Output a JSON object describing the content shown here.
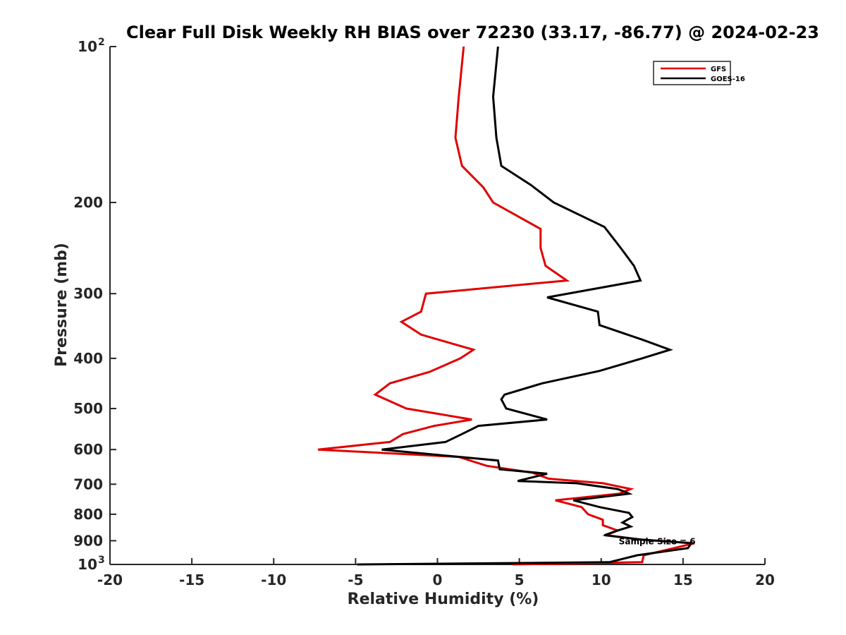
{
  "chart_data": {
    "type": "line",
    "title": "Clear Full Disk Weekly RH BIAS over 72230 (33.17, -86.77) @ 2024-02-23",
    "xlabel": "Relative Humidity (%)",
    "ylabel": "Pressure (mb)",
    "xlim": [
      -20,
      20
    ],
    "ylim": [
      100,
      1000
    ],
    "yscale": "log",
    "y_reversed": true,
    "x_ticks": [
      -20,
      -15,
      -10,
      -5,
      0,
      5,
      10,
      15,
      20
    ],
    "x_tick_labels": [
      "-20",
      "-15",
      "-10",
      "-5",
      "0",
      "5",
      "10",
      "15",
      "20"
    ],
    "y_ticks": [
      {
        "value": 100,
        "label": "10",
        "sup": "2"
      },
      {
        "value": 200,
        "label": "200",
        "sup": ""
      },
      {
        "value": 300,
        "label": "300",
        "sup": ""
      },
      {
        "value": 400,
        "label": "400",
        "sup": ""
      },
      {
        "value": 500,
        "label": "500",
        "sup": ""
      },
      {
        "value": 600,
        "label": "600",
        "sup": ""
      },
      {
        "value": 700,
        "label": "700",
        "sup": ""
      },
      {
        "value": 800,
        "label": "800",
        "sup": ""
      },
      {
        "value": 900,
        "label": "900",
        "sup": ""
      },
      {
        "value": 1000,
        "label": "10",
        "sup": "3"
      }
    ],
    "legend_position": "top-right",
    "annotation": "Sample Size = 6",
    "annotation_at": {
      "x": 10.3,
      "y": 900
    },
    "series": [
      {
        "name": "GFS",
        "color": "#e00000",
        "points": [
          [
            1.6,
            100
          ],
          [
            1.3,
            125
          ],
          [
            1.1,
            150
          ],
          [
            1.5,
            170
          ],
          [
            2.8,
            187
          ],
          [
            3.4,
            200
          ],
          [
            6.3,
            225
          ],
          [
            6.3,
            245
          ],
          [
            6.6,
            265
          ],
          [
            7.9,
            283
          ],
          [
            -0.7,
            300
          ],
          [
            -1.0,
            325
          ],
          [
            -2.2,
            340
          ],
          [
            -1.0,
            360
          ],
          [
            2.2,
            385
          ],
          [
            1.4,
            400
          ],
          [
            -0.5,
            425
          ],
          [
            -2.9,
            447
          ],
          [
            -3.8,
            470
          ],
          [
            -1.9,
            500
          ],
          [
            2.1,
            525
          ],
          [
            -0.2,
            540
          ],
          [
            -2.1,
            560
          ],
          [
            -2.9,
            580
          ],
          [
            -7.3,
            600
          ],
          [
            1.3,
            620
          ],
          [
            3.0,
            645
          ],
          [
            5.8,
            665
          ],
          [
            6.8,
            683
          ],
          [
            10.1,
            697
          ],
          [
            11.8,
            715
          ],
          [
            11.1,
            730
          ],
          [
            7.2,
            752
          ],
          [
            8.8,
            775
          ],
          [
            9.2,
            800
          ],
          [
            10.1,
            820
          ],
          [
            10.1,
            840
          ],
          [
            11.0,
            860
          ],
          [
            10.3,
            878
          ],
          [
            12.3,
            895
          ],
          [
            15.7,
            910
          ],
          [
            12.6,
            960
          ],
          [
            12.5,
            990
          ],
          [
            4.6,
            1000
          ]
        ]
      },
      {
        "name": "GOES-16",
        "color": "#000000",
        "points": [
          [
            3.7,
            100
          ],
          [
            3.4,
            125
          ],
          [
            3.6,
            150
          ],
          [
            3.9,
            170
          ],
          [
            5.7,
            185
          ],
          [
            7.1,
            200
          ],
          [
            10.2,
            223
          ],
          [
            11.2,
            245
          ],
          [
            12.0,
            265
          ],
          [
            12.4,
            283
          ],
          [
            6.7,
            305
          ],
          [
            9.8,
            325
          ],
          [
            9.9,
            345
          ],
          [
            12.5,
            368
          ],
          [
            14.2,
            385
          ],
          [
            12.5,
            400
          ],
          [
            9.9,
            423
          ],
          [
            6.4,
            447
          ],
          [
            4.1,
            470
          ],
          [
            3.9,
            480
          ],
          [
            4.2,
            500
          ],
          [
            6.7,
            525
          ],
          [
            2.5,
            540
          ],
          [
            1.5,
            560
          ],
          [
            0.5,
            580
          ],
          [
            -3.4,
            600
          ],
          [
            3.7,
            630
          ],
          [
            3.8,
            655
          ],
          [
            6.7,
            668
          ],
          [
            4.9,
            690
          ],
          [
            8.5,
            697
          ],
          [
            11.0,
            715
          ],
          [
            11.4,
            723
          ],
          [
            11.7,
            730
          ],
          [
            8.3,
            752
          ],
          [
            9.9,
            775
          ],
          [
            11.7,
            795
          ],
          [
            11.9,
            810
          ],
          [
            11.3,
            830
          ],
          [
            11.8,
            845
          ],
          [
            11.0,
            860
          ],
          [
            10.2,
            878
          ],
          [
            12.4,
            895
          ],
          [
            15.5,
            910
          ],
          [
            15.3,
            930
          ],
          [
            12.2,
            960
          ],
          [
            10.5,
            990
          ],
          [
            -4.9,
            1000
          ]
        ]
      }
    ]
  }
}
